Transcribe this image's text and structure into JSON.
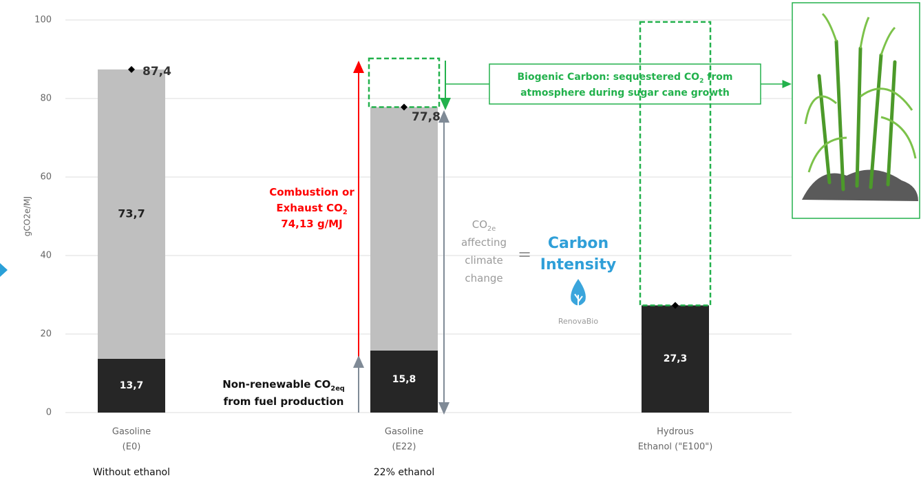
{
  "chart_data": {
    "type": "bar",
    "stacked": true,
    "y_label": "gCO2e/MJ",
    "categories": [
      [
        "Gasoline",
        "(E0)"
      ],
      [
        "Gasoline",
        "(E22)"
      ],
      [
        "Hydrous",
        "Ethanol (\"E100\")"
      ]
    ],
    "subcategory_labels": [
      "Without ethanol",
      "22% ethanol",
      null
    ],
    "series": [
      {
        "color": "#262626",
        "values": [
          13.7,
          15.8,
          27.3
        ],
        "value_labels": [
          "13,7",
          "15,8",
          "27,3"
        ]
      },
      {
        "color": "#bfbfbf",
        "values": [
          73.7,
          62.0,
          null
        ],
        "value_labels": [
          "73,7",
          null,
          null
        ]
      }
    ],
    "totals": {
      "values": [
        87.4,
        77.8,
        27.3
      ],
      "value_labels": [
        "87,4",
        "77,8",
        null
      ]
    },
    "biogenic": {
      "color": "#22b14c",
      "ranges": [
        null,
        [
          77.8,
          90.2
        ],
        [
          27.3,
          99.5
        ]
      ]
    },
    "ylim": [
      0,
      100
    ],
    "yticks": [
      0,
      20,
      40,
      60,
      80,
      100
    ],
    "grid": true,
    "annotations": {
      "combustion": [
        [
          {
            "t": "Combustion or"
          }
        ],
        [
          {
            "t": "Exhaust CO"
          },
          {
            "t": "2",
            "sub": true
          }
        ],
        [
          {
            "t": "74,13 g/MJ"
          }
        ]
      ],
      "non_renewable": [
        [
          {
            "t": "Non-renewable CO"
          },
          {
            "t": "2eq",
            "sub": true
          }
        ],
        [
          {
            "t": "from fuel production"
          }
        ]
      ],
      "co2e": [
        [
          {
            "t": "CO"
          },
          {
            "t": "2e",
            "sub": true
          }
        ],
        [
          {
            "t": "affecting"
          }
        ],
        [
          {
            "t": "climate"
          }
        ],
        [
          {
            "t": "change"
          }
        ]
      ],
      "equals": "=",
      "carbon_intensity": [
        "Carbon",
        "Intensity"
      ],
      "logo": "RenovaBio",
      "biogenic_text": [
        [
          {
            "t": "Biogenic Carbon: sequestered CO"
          },
          {
            "t": "2",
            "sub": true
          },
          {
            "t": " from"
          }
        ],
        [
          {
            "t": "atmosphere  during sugar cane growth"
          }
        ]
      ]
    }
  }
}
